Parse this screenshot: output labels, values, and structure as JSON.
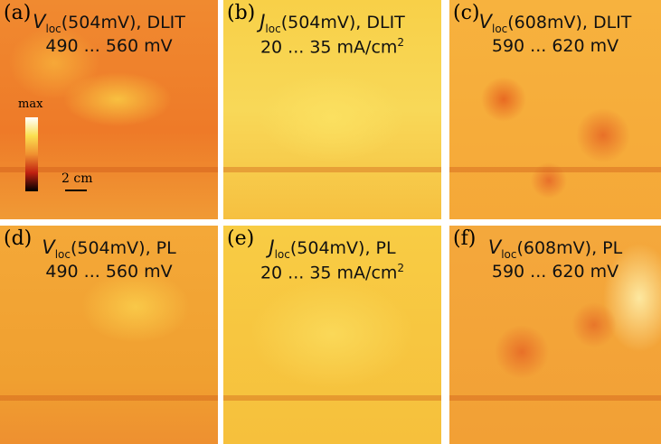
{
  "panels": [
    {
      "label": "(a)",
      "quantity": "V",
      "subscript": "loc",
      "condition": "(504mV), DLIT",
      "range": "490 ... 560 mV"
    },
    {
      "label": "(b)",
      "quantity": "J",
      "subscript": "loc",
      "condition": "(504mV), DLIT",
      "range": "20 ... 35 mA/cm",
      "range_superscript": "2"
    },
    {
      "label": "(c)",
      "quantity": "V",
      "subscript": "loc",
      "condition": "(608mV), DLIT",
      "range": "590 ... 620 mV"
    },
    {
      "label": "(d)",
      "quantity": "V",
      "subscript": "loc",
      "condition": "(504mV), PL",
      "range": "490 ... 560 mV"
    },
    {
      "label": "(e)",
      "quantity": "J",
      "subscript": "loc",
      "condition": "(504mV), PL",
      "range": "20 ... 35 mA/cm",
      "range_superscript": "2"
    },
    {
      "label": "(f)",
      "quantity": "V",
      "subscript": "loc",
      "condition": "(608mV), PL",
      "range": "590 ... 620 mV"
    }
  ],
  "colorbar": {
    "label": "max"
  },
  "scale_bar": {
    "label": "2 cm"
  }
}
